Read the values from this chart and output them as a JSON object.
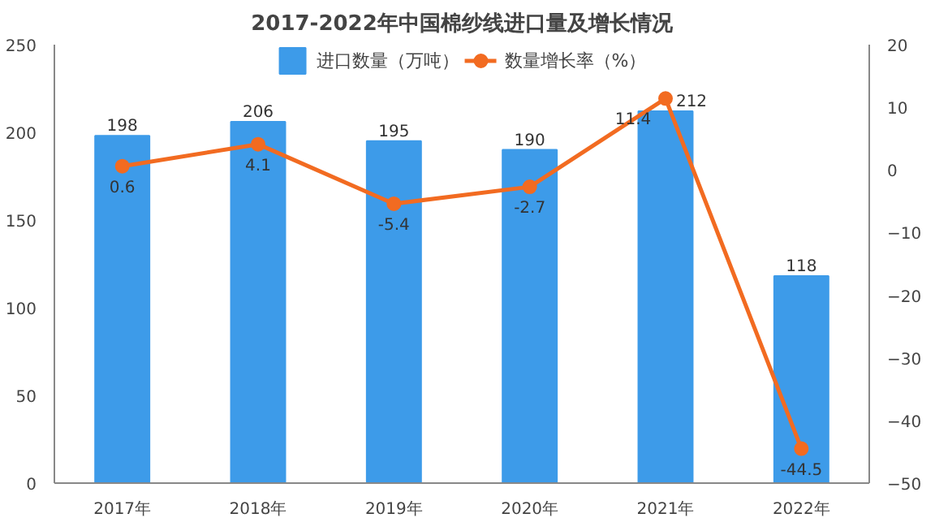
{
  "chart_data": {
    "type": "bar",
    "title": "2017-2022年中国棉纱线进口量及增长情况",
    "categories": [
      "2017年",
      "2018年",
      "2019年",
      "2020年",
      "2021年",
      "2022年"
    ],
    "series": [
      {
        "name": "进口数量（万吨）",
        "color": "#3d9be9",
        "values": [
          198,
          206,
          195,
          190,
          212,
          118
        ]
      },
      {
        "name": "数量增长率（%）",
        "type": "line",
        "axis": "y2",
        "color": "#f26b21",
        "values": [
          0.6,
          4.1,
          -5.4,
          -2.7,
          11.4,
          -44.5
        ]
      }
    ],
    "ylim": [
      0,
      250
    ],
    "yticks": [
      0,
      50,
      100,
      150,
      200,
      250
    ],
    "y2lim": [
      -50,
      20
    ],
    "y2ticks": [
      -50,
      -40,
      -30,
      -20,
      -10,
      0,
      10,
      20
    ],
    "data_labels": true,
    "legend": "top",
    "grid": false,
    "marker": "circle",
    "line_style": "solid"
  }
}
